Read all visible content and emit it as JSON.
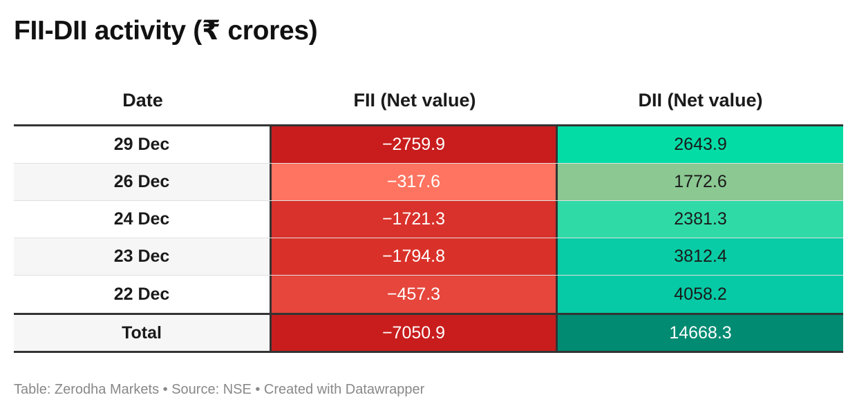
{
  "title": "FII-DII activity (₹ crores)",
  "footer": "Table: Zerodha Markets • Source: NSE • Created with Datawrapper",
  "chart_data": {
    "type": "table",
    "columns": [
      "Date",
      "FII (Net value)",
      "DII (Net value)"
    ],
    "rows": [
      {
        "date": "29 Dec",
        "fii": "−2759.9",
        "dii": "2643.9",
        "fii_color": "#c91d1d",
        "dii_color": "#04dca6"
      },
      {
        "date": "26 Dec",
        "fii": "−317.6",
        "dii": "1772.6",
        "fii_color": "#ff7460",
        "dii_color": "#8bc892"
      },
      {
        "date": "24 Dec",
        "fii": "−1721.3",
        "dii": "2381.3",
        "fii_color": "#d9312b",
        "dii_color": "#2fdaa6"
      },
      {
        "date": "23 Dec",
        "fii": "−1794.8",
        "dii": "3812.4",
        "fii_color": "#d93129",
        "dii_color": "#08cca5"
      },
      {
        "date": "22 Dec",
        "fii": "−457.3",
        "dii": "4058.2",
        "fii_color": "#e6463b",
        "dii_color": "#06caa5"
      }
    ],
    "total": {
      "date": "Total",
      "fii": "−7050.9",
      "dii": "14668.3",
      "fii_color": "#c91d1d",
      "dii_color": "#008b72"
    }
  }
}
